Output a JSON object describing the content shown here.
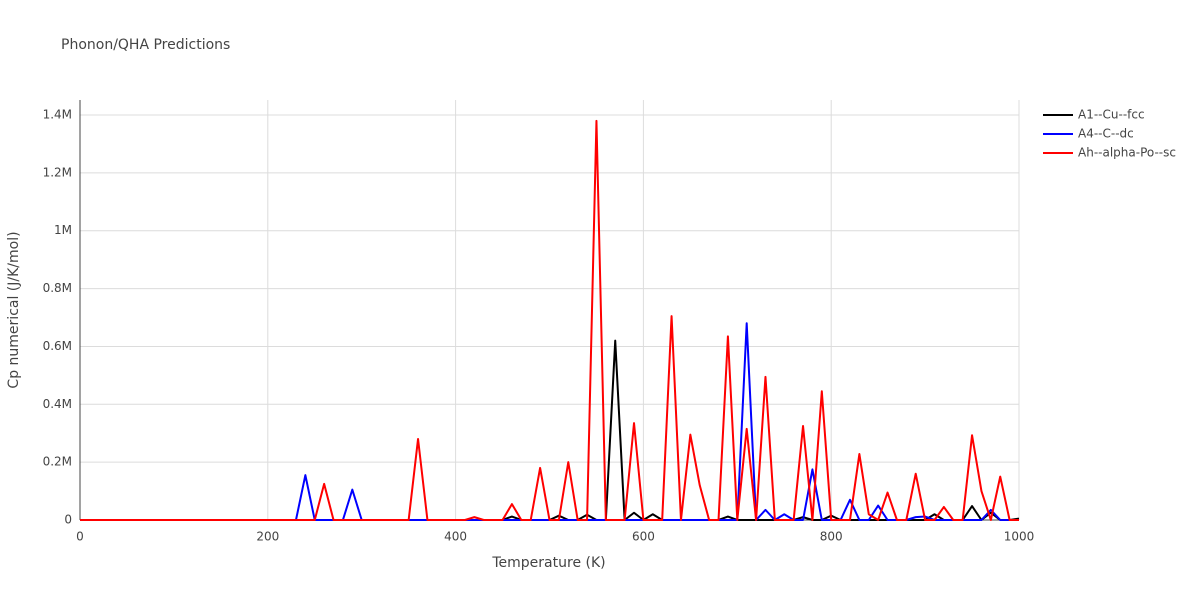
{
  "chart_data": {
    "type": "line",
    "title": "Phonon/QHA Predictions",
    "x_label": "Temperature (K)",
    "y_label": "Cp numerical (J/K/mol)",
    "xlim": [
      0,
      1000
    ],
    "xticks": [
      0,
      200,
      400,
      600,
      800,
      1000
    ],
    "ylim": [
      0,
      1452000
    ],
    "yticks": [
      0,
      {
        "value": 200000,
        "label": "0.2M"
      },
      {
        "value": 400000,
        "label": "0.4M"
      },
      {
        "value": 600000,
        "label": "0.6M"
      },
      {
        "value": 800000,
        "label": "0.8M"
      },
      {
        "value": 1000000,
        "label": "1M"
      },
      {
        "value": 1200000,
        "label": "1.2M"
      },
      {
        "value": 1400000,
        "label": "1.4M"
      }
    ],
    "grid": true,
    "legend": "outside-right",
    "series": [
      {
        "name": "A1--Cu--fcc",
        "color": "#000000",
        "x": [
          0,
          450,
          460,
          470,
          500,
          510,
          520,
          530,
          540,
          550,
          560,
          570,
          580,
          590,
          600,
          610,
          620,
          680,
          690,
          700,
          760,
          770,
          780,
          790,
          800,
          810,
          900,
          910,
          920,
          940,
          950,
          960,
          970,
          980,
          990,
          1000
        ],
        "values": [
          0,
          0,
          12000,
          0,
          0,
          15000,
          0,
          0,
          18000,
          0,
          0,
          620000,
          0,
          25000,
          0,
          20000,
          0,
          0,
          12000,
          0,
          0,
          10000,
          0,
          0,
          15000,
          0,
          0,
          20000,
          0,
          0,
          48000,
          0,
          25000,
          0,
          0,
          5000
        ]
      },
      {
        "name": "A4--C--dc",
        "color": "#0000ff",
        "x": [
          0,
          230,
          240,
          250,
          280,
          290,
          300,
          700,
          710,
          720,
          730,
          740,
          750,
          760,
          770,
          780,
          790,
          810,
          820,
          830,
          840,
          850,
          860,
          880,
          890,
          900,
          910,
          960,
          970,
          980,
          1000
        ],
        "values": [
          0,
          0,
          155000,
          0,
          0,
          105000,
          0,
          0,
          680000,
          0,
          35000,
          0,
          20000,
          0,
          0,
          175000,
          0,
          0,
          70000,
          0,
          0,
          50000,
          0,
          0,
          10000,
          12000,
          0,
          0,
          35000,
          0,
          0
        ]
      },
      {
        "name": "Ah--alpha-Po--sc",
        "color": "#ff0000",
        "x": [
          0,
          250,
          260,
          270,
          350,
          360,
          370,
          410,
          420,
          430,
          450,
          460,
          470,
          480,
          490,
          500,
          510,
          520,
          530,
          540,
          550,
          560,
          580,
          590,
          600,
          620,
          630,
          640,
          650,
          660,
          670,
          680,
          690,
          700,
          710,
          720,
          730,
          740,
          760,
          770,
          780,
          790,
          800,
          820,
          830,
          840,
          850,
          860,
          870,
          880,
          890,
          900,
          910,
          920,
          930,
          940,
          950,
          960,
          970,
          980,
          990,
          1000
        ],
        "values": [
          0,
          0,
          125000,
          0,
          0,
          280000,
          0,
          0,
          10000,
          0,
          0,
          55000,
          0,
          0,
          180000,
          0,
          0,
          200000,
          0,
          0,
          1380000,
          0,
          0,
          335000,
          0,
          0,
          705000,
          0,
          295000,
          120000,
          0,
          0,
          635000,
          0,
          315000,
          0,
          495000,
          0,
          0,
          325000,
          0,
          445000,
          0,
          0,
          228000,
          20000,
          0,
          95000,
          0,
          0,
          160000,
          0,
          0,
          45000,
          0,
          0,
          293000,
          100000,
          0,
          150000,
          0,
          0
        ]
      }
    ]
  }
}
